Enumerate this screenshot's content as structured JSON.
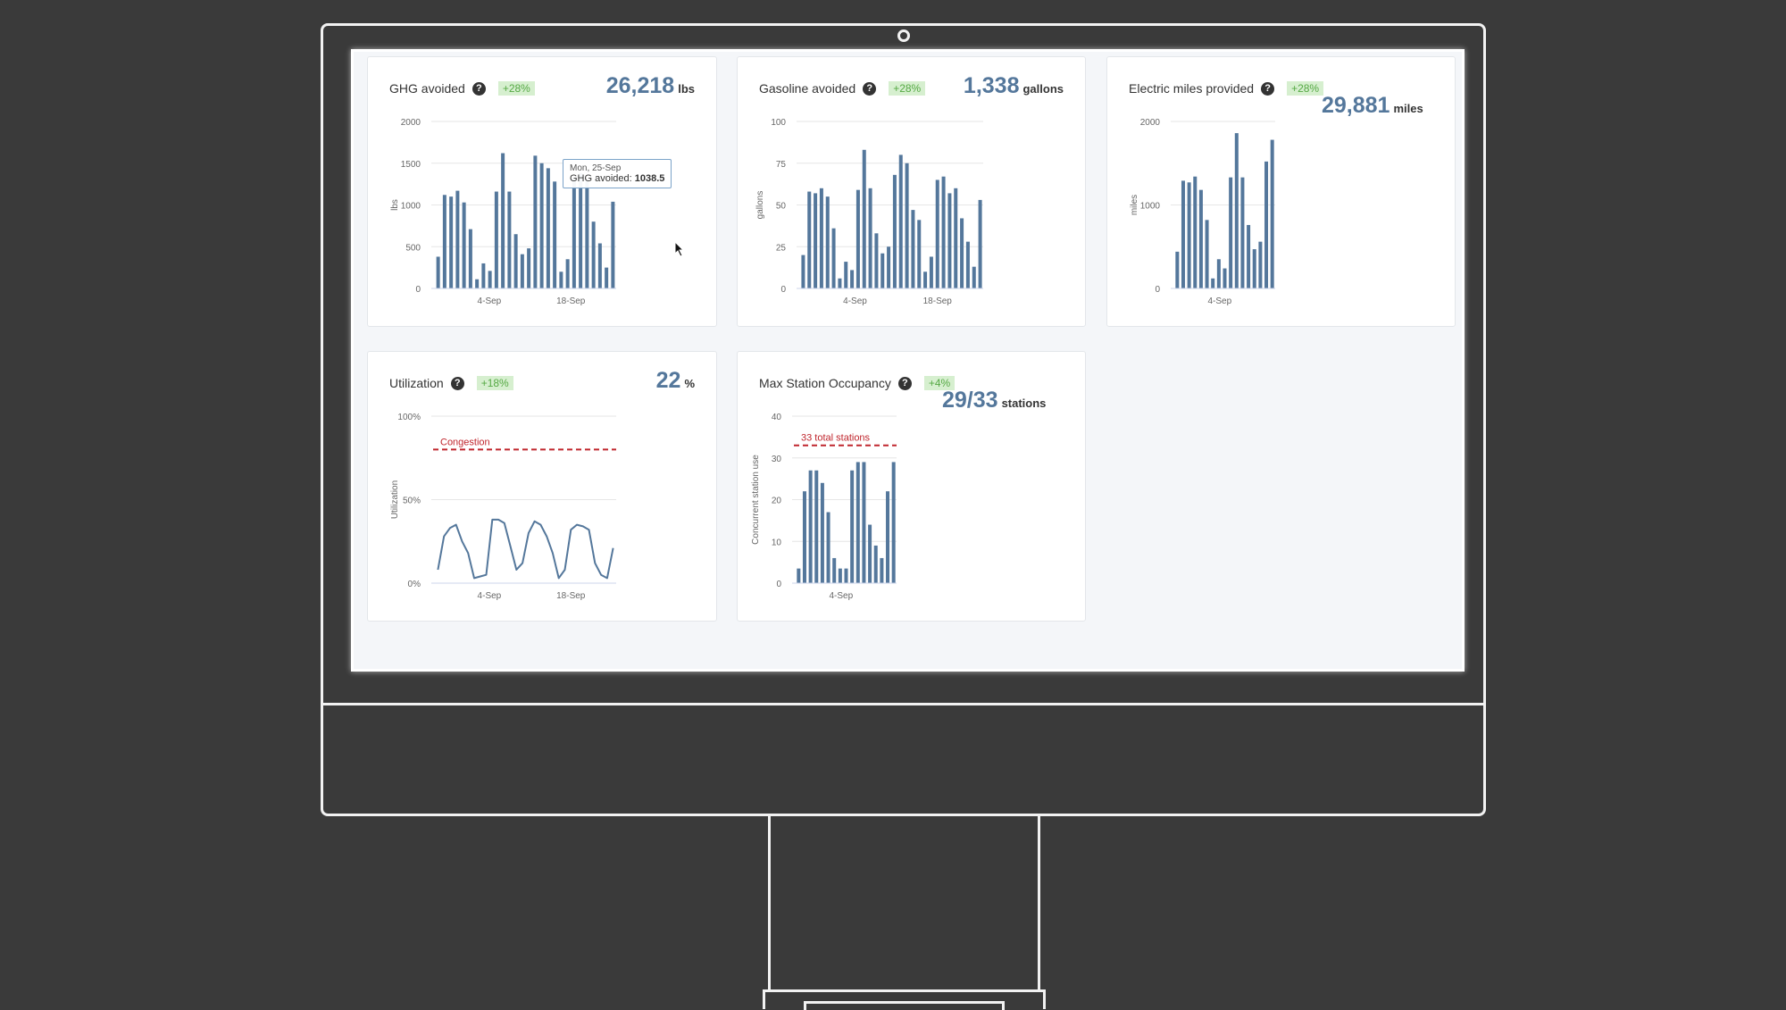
{
  "colors": {
    "bar": "#54779b",
    "accent_text": "#54779b",
    "badge_bg": "#d6efcf",
    "badge_text": "#55a944",
    "threshold": "#c0262d"
  },
  "cards": {
    "ghg": {
      "title": "GHG avoided",
      "help": "?",
      "badge": "+28%",
      "value": "26,218",
      "unit": "lbs"
    },
    "gasoline": {
      "title": "Gasoline avoided",
      "help": "?",
      "badge": "+28%",
      "value": "1,338",
      "unit": "gallons"
    },
    "miles": {
      "title": "Electric miles provided",
      "help": "?",
      "badge": "+28%",
      "value": "29,881",
      "unit": "miles"
    },
    "util": {
      "title": "Utilization",
      "help": "?",
      "badge": "+18%",
      "value": "22",
      "unit": "%"
    },
    "occupancy": {
      "title": "Max Station Occupancy",
      "help": "?",
      "badge": "+4%",
      "value": "29/33",
      "unit": "stations"
    }
  },
  "tooltip": {
    "date": "Mon, 25-Sep",
    "label": "GHG avoided:",
    "value": "1038.5"
  },
  "chart_data": [
    {
      "id": "ghg",
      "type": "bar",
      "ylabel": "lbs",
      "ylim": [
        0,
        2000
      ],
      "yticks": [
        0,
        500,
        1000,
        1500,
        2000
      ],
      "xticks": [
        "4-Sep",
        "18-Sep"
      ],
      "values": [
        380,
        1120,
        1100,
        1170,
        1030,
        710,
        110,
        300,
        210,
        1160,
        1620,
        1160,
        650,
        410,
        480,
        1590,
        1500,
        1440,
        1280,
        200,
        350,
        1310,
        1380,
        1290,
        800,
        540,
        250,
        1038.5
      ]
    },
    {
      "id": "gasoline",
      "type": "bar",
      "ylabel": "gallons",
      "ylim": [
        0,
        100
      ],
      "yticks": [
        0,
        25,
        50,
        75,
        100
      ],
      "xticks": [
        "4-Sep",
        "18-Sep"
      ],
      "values": [
        20,
        58,
        57,
        60,
        55,
        36,
        6,
        16,
        11,
        59,
        83,
        60,
        33,
        21,
        25,
        68,
        80,
        75,
        47,
        41,
        10,
        19,
        65,
        67,
        57,
        60,
        42,
        28,
        13,
        53
      ]
    },
    {
      "id": "miles",
      "type": "bar",
      "ylabel": "miles",
      "ylim": [
        0,
        2000
      ],
      "yticks": [
        0,
        1000,
        2000
      ],
      "xticks": [
        "4-Sep"
      ],
      "values": [
        440,
        1290,
        1270,
        1340,
        1180,
        820,
        120,
        350,
        240,
        1330,
        1860,
        1330,
        760,
        470,
        560,
        1520,
        1780
      ]
    },
    {
      "id": "util",
      "type": "line",
      "ylabel": "Utilization",
      "ylim": [
        0,
        100
      ],
      "yticks": [
        "0%",
        "50%",
        "100%"
      ],
      "xticks": [
        "4-Sep",
        "18-Sep"
      ],
      "threshold": {
        "value": 80,
        "label": "Congestion"
      },
      "values": [
        8,
        28,
        33,
        35,
        25,
        18,
        3,
        4,
        5,
        38,
        38,
        36,
        22,
        8,
        12,
        30,
        37,
        35,
        28,
        18,
        3,
        8,
        32,
        35,
        34,
        32,
        12,
        5,
        3,
        21
      ]
    },
    {
      "id": "occupancy",
      "type": "bar",
      "ylabel": "Concurrent station use",
      "ylim": [
        0,
        40
      ],
      "yticks": [
        0,
        10,
        20,
        30,
        40
      ],
      "xticks": [
        "4-Sep"
      ],
      "threshold": {
        "value": 33,
        "label": "33 total stations"
      },
      "values": [
        3.5,
        22,
        27,
        27,
        24,
        17,
        6,
        3.5,
        3.5,
        27,
        29,
        29,
        14,
        9,
        6,
        22,
        29
      ]
    }
  ]
}
